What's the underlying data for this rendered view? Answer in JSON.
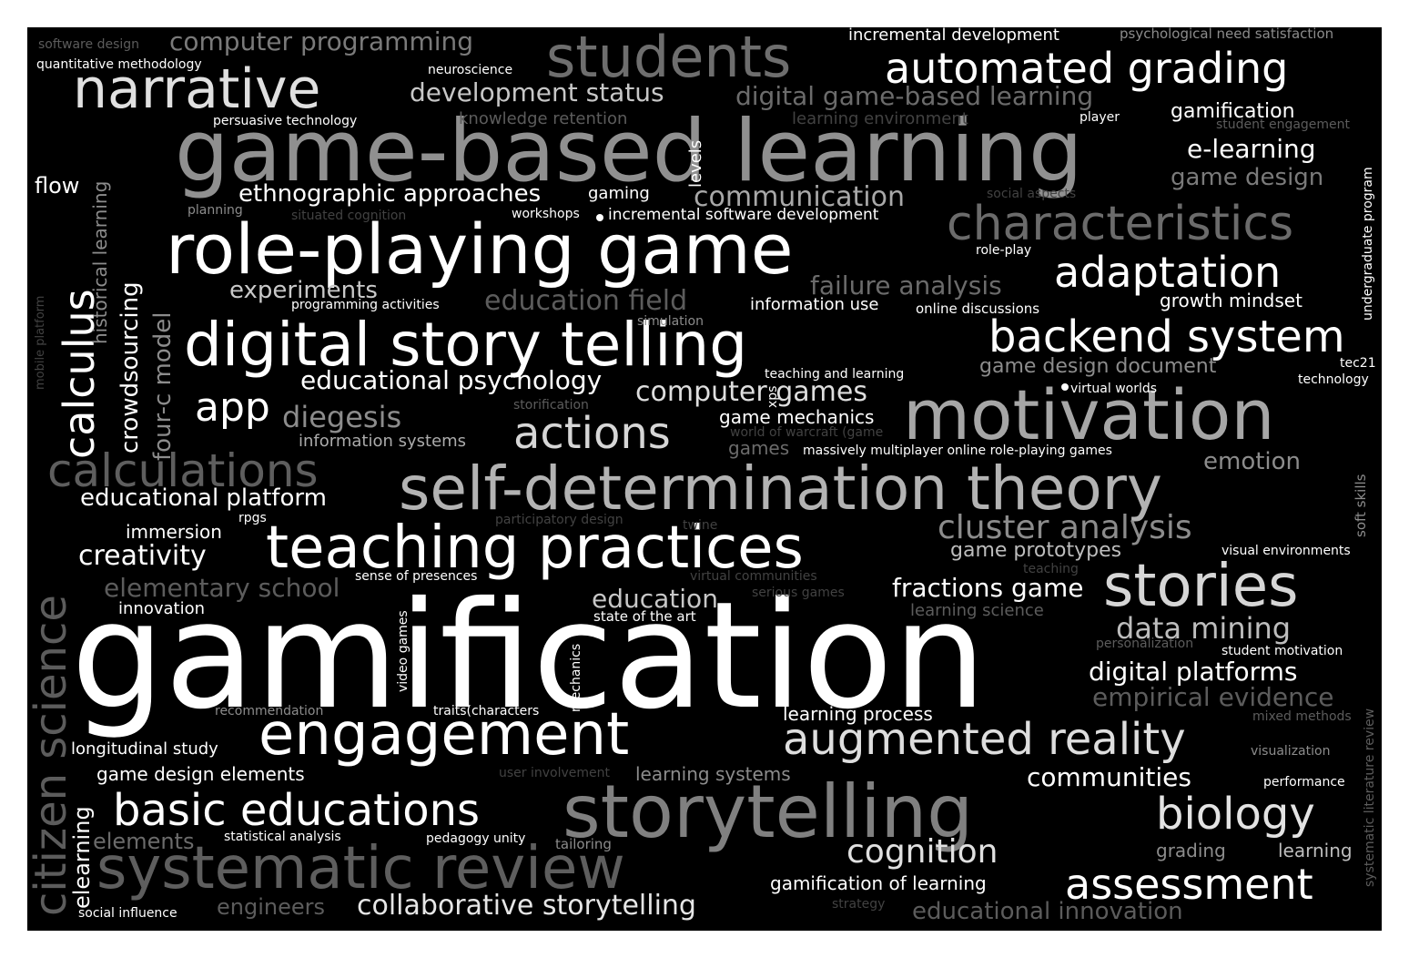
{
  "colors": {
    "background": "#000000",
    "frame": "#ffffff",
    "palette": [
      "#ffffff",
      "#e6e6e6",
      "#d2d2d2",
      "#bdbdbd",
      "#a9a9a9",
      "#969696",
      "#808080",
      "#6b6b6b",
      "#575757",
      "#424242"
    ]
  },
  "words": [
    {
      "text": "gamification",
      "color": "#ffffff"
    },
    {
      "text": "game-based learning",
      "color": "#909090"
    },
    {
      "text": "role-playing game",
      "color": "#ffffff"
    },
    {
      "text": "digital story telling",
      "color": "#ffffff"
    },
    {
      "text": "motivation",
      "color": "#a6a6a6"
    },
    {
      "text": "storytelling",
      "color": "#808080"
    },
    {
      "text": "self-determination theory",
      "color": "#b3b3b3"
    },
    {
      "text": "teaching practices",
      "color": "#ffffff"
    },
    {
      "text": "engagement",
      "color": "#ffffff"
    },
    {
      "text": "systematic review",
      "color": "#5e5e5e"
    },
    {
      "text": "narrative",
      "color": "#e0e0e0"
    },
    {
      "text": "students",
      "color": "#6e6e6e"
    },
    {
      "text": "automated grading",
      "color": "#ffffff"
    },
    {
      "text": "characteristics",
      "color": "#6b6b6b"
    },
    {
      "text": "backend system",
      "color": "#ffffff"
    },
    {
      "text": "stories",
      "color": "#d6d6d6"
    },
    {
      "text": "basic educations",
      "color": "#ffffff"
    },
    {
      "text": "augmented reality",
      "color": "#dedede"
    },
    {
      "text": "calculations",
      "color": "#5e5e5e"
    },
    {
      "text": "adaptation",
      "color": "#ffffff"
    },
    {
      "text": "biology",
      "color": "#e3e3e3"
    },
    {
      "text": "assessment",
      "color": "#ffffff"
    },
    {
      "text": "actions",
      "color": "#d6d6d6"
    },
    {
      "text": "cluster analysis",
      "color": "#8c8c8c"
    },
    {
      "text": "app",
      "color": "#ffffff"
    },
    {
      "text": "cognition",
      "color": "#e0e0e0"
    },
    {
      "text": "collaborative storytelling",
      "color": "#e6e6e6"
    },
    {
      "text": "computer programming",
      "color": "#7a7a7a"
    },
    {
      "text": "development status",
      "color": "#c7c7c7"
    },
    {
      "text": "digital game-based learning",
      "color": "#6b6b6b"
    },
    {
      "text": "communication",
      "color": "#a8a8a8"
    },
    {
      "text": "educational psychology",
      "color": "#ffffff"
    },
    {
      "text": "computer games",
      "color": "#dedede"
    },
    {
      "text": "diegesis",
      "color": "#8c8c8c"
    },
    {
      "text": "educational platform",
      "color": "#ffffff"
    },
    {
      "text": "creativity",
      "color": "#ffffff"
    },
    {
      "text": "elementary school",
      "color": "#5c5c5c"
    },
    {
      "text": "failure analysis",
      "color": "#6b6b6b"
    },
    {
      "text": "education field",
      "color": "#5c5c5c"
    },
    {
      "text": "ethnographic approaches",
      "color": "#ffffff"
    },
    {
      "text": "experiments",
      "color": "#c9c9c9"
    },
    {
      "text": "fractions game",
      "color": "#ffffff"
    },
    {
      "text": "education",
      "color": "#c7c7c7"
    },
    {
      "text": "data mining",
      "color": "#bdbdbd"
    },
    {
      "text": "digital platforms",
      "color": "#ffffff"
    },
    {
      "text": "empirical evidence",
      "color": "#5c5c5c"
    },
    {
      "text": "communities",
      "color": "#ffffff"
    },
    {
      "text": "e-learning",
      "color": "#ffffff"
    },
    {
      "text": "game design",
      "color": "#7a7a7a"
    },
    {
      "text": "gamification",
      "color": "#ffffff"
    },
    {
      "text": "emotion",
      "color": "#8c8c8c"
    },
    {
      "text": "growth mindset",
      "color": "#ffffff"
    },
    {
      "text": "game design document",
      "color": "#8c8c8c"
    },
    {
      "text": "game prototypes",
      "color": "#bdbdbd"
    },
    {
      "text": "game mechanics",
      "color": "#ffffff"
    },
    {
      "text": "games",
      "color": "#6b6b6b"
    },
    {
      "text": "information systems",
      "color": "#ababab"
    },
    {
      "text": "longitudinal study",
      "color": "#ffffff"
    },
    {
      "text": "game design elements",
      "color": "#ffffff"
    },
    {
      "text": "elements",
      "color": "#6b6b6b"
    },
    {
      "text": "engineers",
      "color": "#5c5c5c"
    },
    {
      "text": "educational innovation",
      "color": "#5c5c5c"
    },
    {
      "text": "gamification of learning",
      "color": "#ffffff"
    },
    {
      "text": "learning systems",
      "color": "#8c8c8c"
    },
    {
      "text": "learning process",
      "color": "#ffffff"
    },
    {
      "text": "grading",
      "color": "#8c8c8c"
    },
    {
      "text": "learning",
      "color": "#bdbdbd"
    },
    {
      "text": "immersion",
      "color": "#ffffff"
    },
    {
      "text": "innovation",
      "color": "#ffffff"
    },
    {
      "text": "flow",
      "color": "#ffffff"
    },
    {
      "text": "software design",
      "color": "#5c5c5c"
    },
    {
      "text": "quantitative methodology",
      "color": "#ffffff"
    },
    {
      "text": "neuroscience",
      "color": "#ffffff"
    },
    {
      "text": "persuasive technology",
      "color": "#ffffff"
    },
    {
      "text": "knowledge retention",
      "color": "#5c5c5c"
    },
    {
      "text": "incremental development",
      "color": "#ffffff"
    },
    {
      "text": "psychological need satisfaction",
      "color": "#8c8c8c"
    },
    {
      "text": "learning environment",
      "color": "#424242"
    },
    {
      "text": "player",
      "color": "#ffffff"
    },
    {
      "text": "student engagement",
      "color": "#5c5c5c"
    },
    {
      "text": "gaming",
      "color": "#ffffff"
    },
    {
      "text": "workshops",
      "color": "#ffffff"
    },
    {
      "text": "incremental software development",
      "color": "#ffffff"
    },
    {
      "text": "planning",
      "color": "#8c8c8c"
    },
    {
      "text": "situated cognition",
      "color": "#424242"
    },
    {
      "text": "social aspects",
      "color": "#424242"
    },
    {
      "text": "role-play",
      "color": "#ffffff"
    },
    {
      "text": "programming activities",
      "color": "#ffffff"
    },
    {
      "text": "information use",
      "color": "#ffffff"
    },
    {
      "text": "online discussions",
      "color": "#ffffff"
    },
    {
      "text": "simulation",
      "color": "#8c8c8c"
    },
    {
      "text": "teaching and learning",
      "color": "#ffffff"
    },
    {
      "text": "storification",
      "color": "#5c5c5c"
    },
    {
      "text": "virtual worlds",
      "color": "#ffffff"
    },
    {
      "text": "tec21",
      "color": "#ffffff"
    },
    {
      "text": "technology",
      "color": "#ffffff"
    },
    {
      "text": "world of warcraft (game",
      "color": "#424242"
    },
    {
      "text": "massively multiplayer online role-playing games",
      "color": "#ffffff"
    },
    {
      "text": "rpgs",
      "color": "#ffffff"
    },
    {
      "text": "participatory design",
      "color": "#424242"
    },
    {
      "text": "twine",
      "color": "#424242"
    },
    {
      "text": "visual environments",
      "color": "#ffffff"
    },
    {
      "text": "sense of presences",
      "color": "#ffffff"
    },
    {
      "text": "virtual communities",
      "color": "#424242"
    },
    {
      "text": "teaching",
      "color": "#424242"
    },
    {
      "text": "serious games",
      "color": "#424242"
    },
    {
      "text": "state of the art",
      "color": "#ffffff"
    },
    {
      "text": "learning science",
      "color": "#5c5c5c"
    },
    {
      "text": "personalization",
      "color": "#5c5c5c"
    },
    {
      "text": "student motivation",
      "color": "#ffffff"
    },
    {
      "text": "recommendation",
      "color": "#8c8c8c"
    },
    {
      "text": "traits(characters",
      "color": "#ffffff"
    },
    {
      "text": "mixed methods",
      "color": "#5c5c5c"
    },
    {
      "text": "visualization",
      "color": "#8c8c8c"
    },
    {
      "text": "user involvement",
      "color": "#424242"
    },
    {
      "text": "performance",
      "color": "#ffffff"
    },
    {
      "text": "statistical analysis",
      "color": "#ffffff"
    },
    {
      "text": "pedagogy",
      "color": "#ffffff"
    },
    {
      "text": "unity",
      "color": "#ffffff"
    },
    {
      "text": "tailoring",
      "color": "#8c8c8c"
    },
    {
      "text": "social influence",
      "color": "#ffffff"
    },
    {
      "text": "strategy",
      "color": "#424242"
    }
  ],
  "vertical_words": [
    {
      "text": "citizen science",
      "color": "#5c5c5c"
    },
    {
      "text": "calculus",
      "color": "#ffffff"
    },
    {
      "text": "historical learning",
      "color": "#8c8c8c"
    },
    {
      "text": "crowdsourcing",
      "color": "#ffffff"
    },
    {
      "text": "four-c model",
      "color": "#8c8c8c"
    },
    {
      "text": "mobile platform",
      "color": "#424242"
    },
    {
      "text": "levels",
      "color": "#ffffff"
    },
    {
      "text": "xps",
      "color": "#ffffff"
    },
    {
      "text": "video games",
      "color": "#ffffff"
    },
    {
      "text": "mechanics",
      "color": "#ffffff"
    },
    {
      "text": "elearning",
      "color": "#ffffff"
    },
    {
      "text": "undergraduate program",
      "color": "#ffffff"
    },
    {
      "text": "soft skills",
      "color": "#8c8c8c"
    },
    {
      "text": "systematic literature review",
      "color": "#5c5c5c"
    }
  ]
}
